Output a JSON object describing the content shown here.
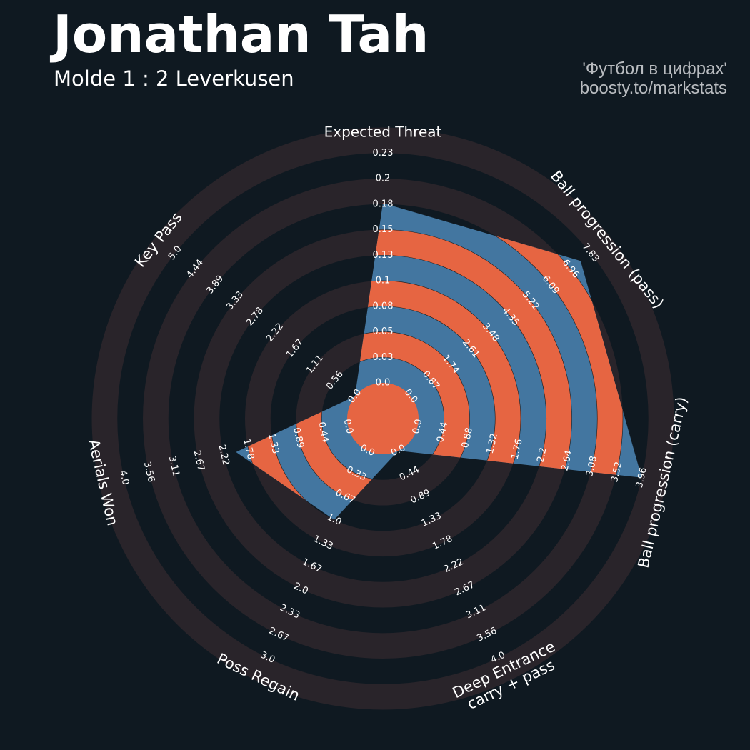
{
  "header": {
    "title": "Jonathan Tah",
    "subtitle": "Molde 1 : 2 Leverkusen",
    "credit_line1": "'Футбол в цифрах'",
    "credit_line2": "boosty.to/markstats"
  },
  "colors": {
    "background": "#0f1921",
    "ring": "#29242a",
    "blue": "#4376a0",
    "orange": "#e66542",
    "text": "#ffffff"
  },
  "chart_data": {
    "type": "radar",
    "player": "Jonathan Tah",
    "params": [
      {
        "label": "Expected Threat",
        "value": 0.18,
        "min": 0.0,
        "max": 0.23,
        "ticks": [
          "0.0",
          "0.03",
          "0.05",
          "0.08",
          "0.1",
          "0.13",
          "0.15",
          "0.18",
          "0.2",
          "0.23"
        ]
      },
      {
        "label": "Ball progression (pass)",
        "value": 7.4,
        "min": 0.0,
        "max": 7.83,
        "ticks": [
          "0.0",
          "0.87",
          "1.74",
          "2.61",
          "3.48",
          "4.35",
          "5.22",
          "6.09",
          "6.96",
          "7.83"
        ]
      },
      {
        "label": "Ball progression (carry)",
        "value": 3.96,
        "min": 0.0,
        "max": 3.96,
        "ticks": [
          "0.0",
          "0.44",
          "0.88",
          "1.32",
          "1.76",
          "2.2",
          "2.64",
          "3.08",
          "3.52",
          "3.96"
        ]
      },
      {
        "label": "Deep Entrance\ncarry + pass",
        "value": 0.0,
        "min": 0.0,
        "max": 4.0,
        "ticks": [
          "0.0",
          "0.44",
          "0.89",
          "1.33",
          "1.78",
          "2.22",
          "2.67",
          "3.11",
          "3.56",
          "4.0"
        ]
      },
      {
        "label": "Poss Regain",
        "value": 1.0,
        "min": 0.0,
        "max": 3.0,
        "ticks": [
          "0.0",
          "0.33",
          "0.67",
          "1.0",
          "1.33",
          "1.67",
          "2.0",
          "2.33",
          "2.67",
          "3.0"
        ]
      },
      {
        "label": "Aerials Won",
        "value": 2.0,
        "min": 0.0,
        "max": 4.0,
        "ticks": [
          "0.0",
          "0.44",
          "0.89",
          "1.33",
          "1.78",
          "2.22",
          "2.67",
          "3.11",
          "3.56",
          "4.0"
        ]
      },
      {
        "label": "Key Pass",
        "value": 0.0,
        "min": 0.0,
        "max": 5.0,
        "ticks": [
          "0.0",
          "0.56",
          "1.11",
          "1.67",
          "2.22",
          "2.78",
          "3.33",
          "3.89",
          "4.44",
          "5.0"
        ]
      }
    ]
  }
}
